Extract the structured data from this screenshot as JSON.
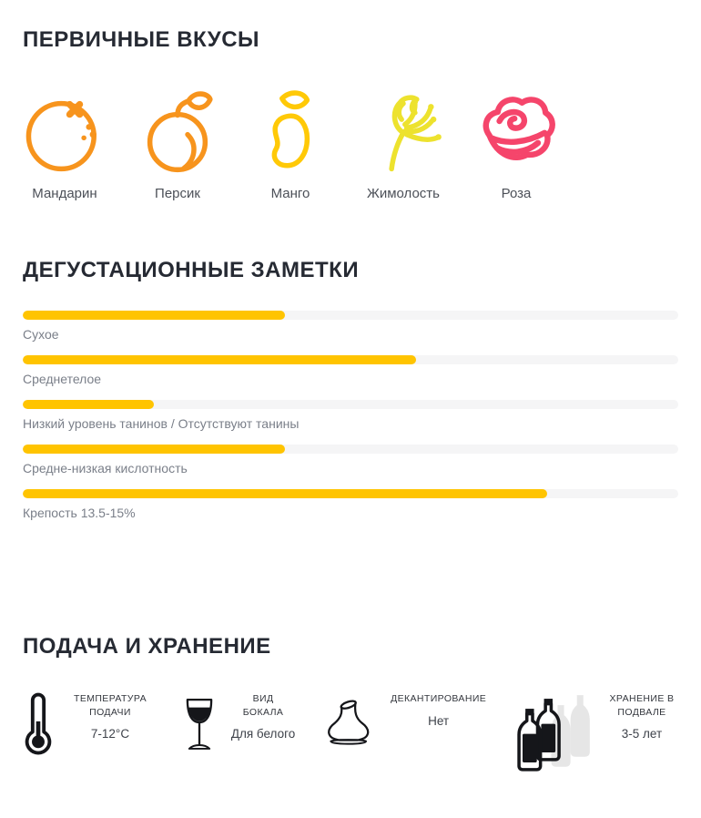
{
  "primary_flavors": {
    "title": "ПЕРВИЧНЫЕ ВКУСЫ",
    "items": [
      {
        "label": "Мандарин",
        "icon": "tangerine-icon",
        "color": "#F7941D"
      },
      {
        "label": "Персик",
        "icon": "peach-icon",
        "color": "#F7941D"
      },
      {
        "label": "Манго",
        "icon": "mango-icon",
        "color": "#FFC907"
      },
      {
        "label": "Жимолость",
        "icon": "honeysuckle-icon",
        "color": "#EDE22E"
      },
      {
        "label": "Роза",
        "icon": "rose-icon",
        "color": "#F5456B"
      }
    ]
  },
  "tasting_notes": {
    "title": "ДЕГУСТАЦИОННЫЕ ЗАМЕТКИ",
    "bar_color": "#FFC400",
    "track_color": "#F5F5F6",
    "chart_data": {
      "type": "bar",
      "categories": [
        "Сухое",
        "Среднетелое",
        "Низкий уровень танинов / Отсутствуют танины",
        "Средне-низкая кислотность",
        "Крепость 13.5-15%"
      ],
      "values": [
        40,
        60,
        20,
        40,
        80
      ],
      "title": "ДЕГУСТАЦИОННЫЕ ЗАМЕТКИ",
      "xlabel": "",
      "ylabel": "",
      "ylim": [
        0,
        100
      ]
    },
    "bars": [
      {
        "label": "Сухое",
        "percent": 40
      },
      {
        "label": "Среднетелое",
        "percent": 60
      },
      {
        "label": "Низкий уровень танинов / Отсутствуют танины",
        "percent": 20
      },
      {
        "label": "Средне-низкая кислотность",
        "percent": 40
      },
      {
        "label": "Крепость 13.5-15%",
        "percent": 80
      }
    ]
  },
  "serving_storage": {
    "title": "ПОДАЧА И ХРАНЕНИЕ",
    "items": [
      {
        "icon": "thermometer-icon",
        "caption": "ТЕМПЕРАТУРА ПОДАЧИ",
        "value": "7-12°C"
      },
      {
        "icon": "wine-glass-icon",
        "caption": "ВИД БОКАЛА",
        "value": "Для белого"
      },
      {
        "icon": "decanter-icon",
        "caption": "ДЕКАНТИРОВАНИЕ",
        "value": "Нет"
      },
      {
        "icon": "wine-bottles-icon",
        "caption": "ХРАНЕНИЕ В ПОДВАЛЕ",
        "value": "3-5 лет"
      }
    ]
  }
}
